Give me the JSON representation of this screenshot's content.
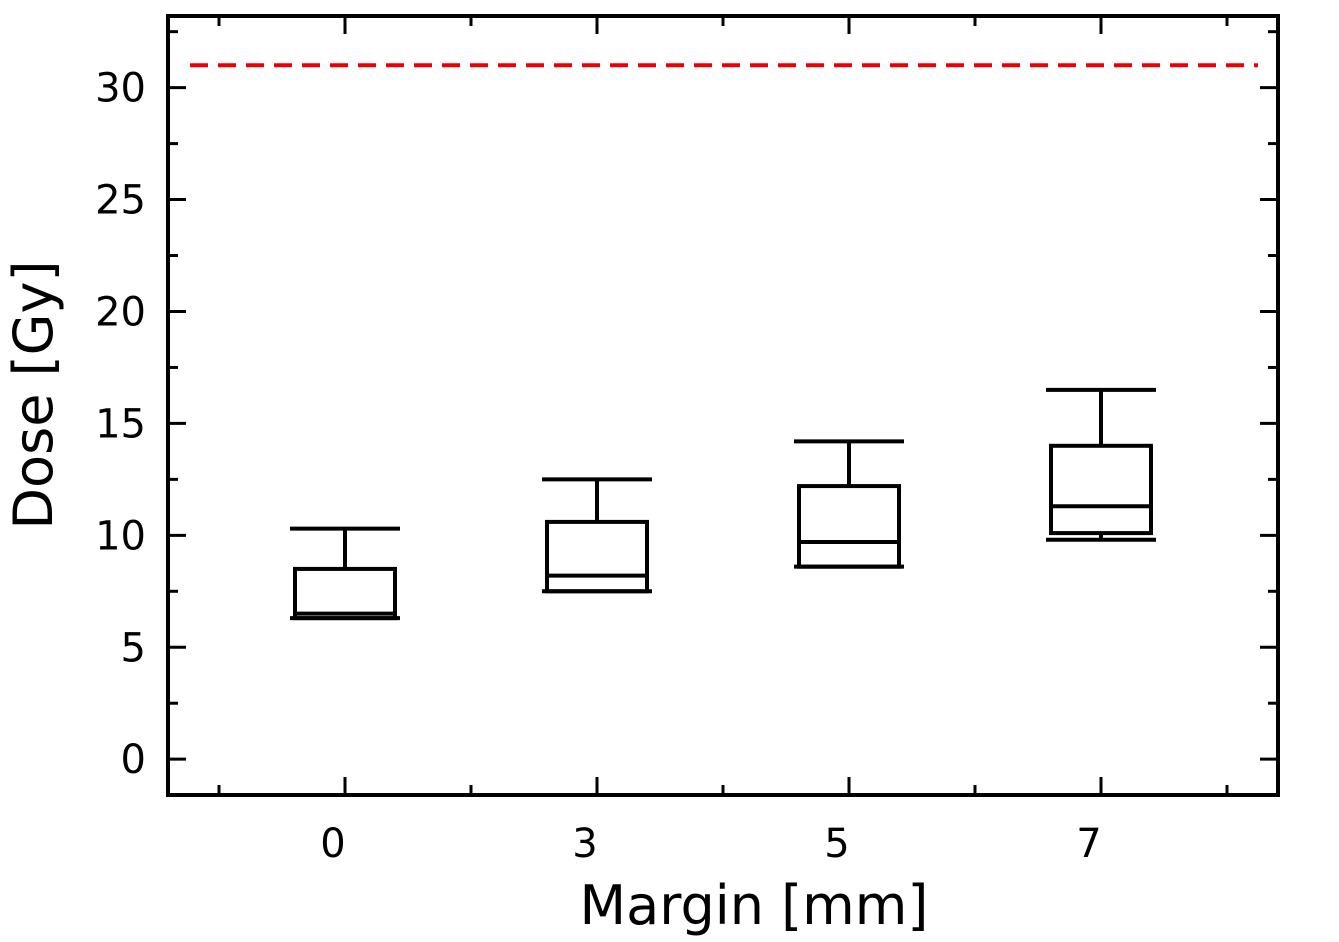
{
  "chart_data": {
    "type": "box",
    "categories": [
      "0",
      "3",
      "5",
      "7"
    ],
    "xlabel": "Margin [mm]",
    "ylabel": "Dose [Gy]",
    "ylim": [
      -1.6,
      33.2
    ],
    "yticks": [
      0,
      5,
      10,
      15,
      20,
      25,
      30
    ],
    "series": [
      {
        "boxes": [
          {
            "category": "0",
            "whisker_low": 6.3,
            "q1": 6.3,
            "median": 6.5,
            "q3": 8.5,
            "whisker_high": 10.3
          },
          {
            "category": "3",
            "whisker_low": 7.5,
            "q1": 7.5,
            "median": 8.2,
            "q3": 10.6,
            "whisker_high": 12.5
          },
          {
            "category": "5",
            "whisker_low": 8.6,
            "q1": 8.6,
            "median": 9.7,
            "q3": 12.2,
            "whisker_high": 14.2
          },
          {
            "category": "7",
            "whisker_low": 9.8,
            "q1": 10.1,
            "median": 11.3,
            "q3": 14.0,
            "whisker_high": 16.5
          }
        ]
      }
    ],
    "reference_line": {
      "y": 31,
      "color": "#ee0000",
      "style": "dashed"
    },
    "grid": false,
    "legend": "none"
  }
}
